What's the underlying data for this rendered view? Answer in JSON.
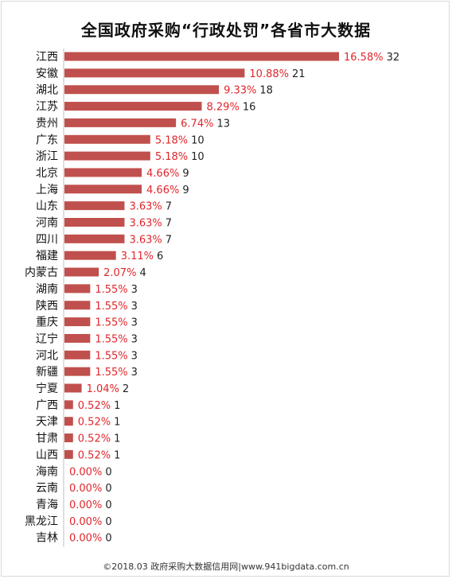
{
  "chart_data": {
    "type": "bar",
    "orientation": "horizontal",
    "title": "全国政府采购“行政处罚”各省市大数据",
    "categories": [
      "江西",
      "安徽",
      "湖北",
      "江苏",
      "贵州",
      "广东",
      "浙江",
      "北京",
      "上海",
      "山东",
      "河南",
      "四川",
      "福建",
      "内蒙古",
      "湖南",
      "陕西",
      "重庆",
      "辽宁",
      "河北",
      "新疆",
      "宁夏",
      "广西",
      "天津",
      "甘肃",
      "山西",
      "海南",
      "云南",
      "青海",
      "黑龙江",
      "吉林"
    ],
    "percent_labels": [
      "16.58%",
      "10.88%",
      "9.33%",
      "8.29%",
      "6.74%",
      "5.18%",
      "5.18%",
      "4.66%",
      "4.66%",
      "3.63%",
      "3.63%",
      "3.63%",
      "3.11%",
      "2.07%",
      "1.55%",
      "1.55%",
      "1.55%",
      "1.55%",
      "1.55%",
      "1.55%",
      "1.04%",
      "0.52%",
      "0.52%",
      "0.52%",
      "0.52%",
      "0.00%",
      "0.00%",
      "0.00%",
      "0.00%",
      "0.00%"
    ],
    "values": [
      32,
      21,
      18,
      16,
      13,
      10,
      10,
      9,
      9,
      7,
      7,
      7,
      6,
      4,
      3,
      3,
      3,
      3,
      3,
      3,
      2,
      1,
      1,
      1,
      1,
      0,
      0,
      0,
      0,
      0
    ],
    "xlim": [
      0,
      32
    ],
    "grid": false,
    "legend": "none",
    "colors": {
      "bar": "#c0504d",
      "percent_text": "#e0262b",
      "count_text": "#222222",
      "axis": "#bfbfbf"
    }
  },
  "footer": "©2018.03 政府采购大数据信用网|www.941bigdata.com.cn"
}
